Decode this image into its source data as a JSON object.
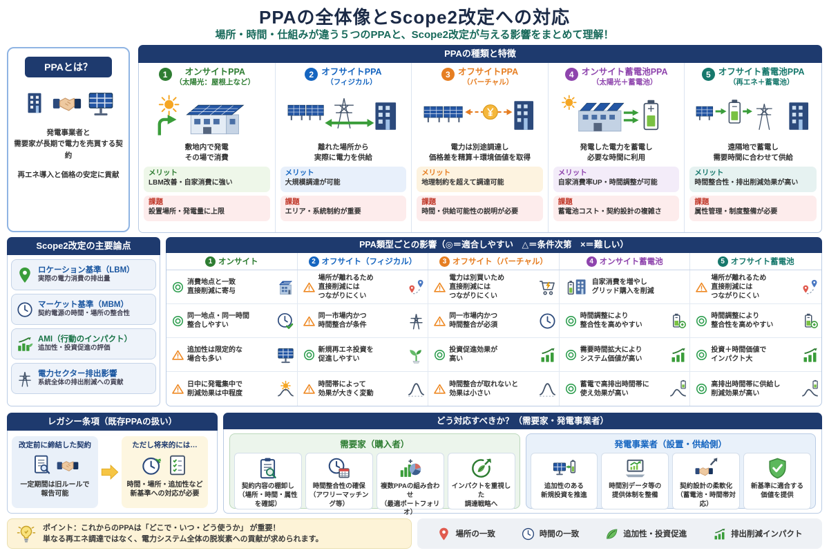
{
  "title": "PPAの全体像とScope2改定への対応",
  "subtitle": "場所・時間・仕組みが違う５つのPPAと、Scope2改定が与える影響をまとめて理解！",
  "intro": {
    "header": "PPAとは？",
    "paragraphs": [
      [
        "発電事業者と",
        "需要家が長期で電力を売買する契約"
      ],
      [
        "再エネ導入と価格の安定に貢献"
      ]
    ]
  },
  "types": {
    "header": "PPAの種類と特徴",
    "merit_label": "メリット",
    "issue_label": "課題",
    "columns": [
      {
        "num": "1",
        "color": "#2e7d32",
        "merit_bg": "#eef7e9",
        "title": "オンサイトPPA",
        "subtitle": "（太陽光：屋根上など）",
        "desc": [
          "敷地内で発電",
          "その場で消費"
        ],
        "merit": "LBM改善・自家消費に強い",
        "issue": "設置場所・発電量に上限",
        "illustration": "onsite"
      },
      {
        "num": "2",
        "color": "#1565c0",
        "merit_bg": "#e8f0fb",
        "title": "オフサイトPPA",
        "subtitle": "（フィジカル）",
        "desc": [
          "離れた場所から",
          "実際に電力を供給"
        ],
        "merit": "大規模調達が可能",
        "issue": "エリア・系統制約が重要",
        "illustration": "offsite_physical"
      },
      {
        "num": "3",
        "color": "#e67e22",
        "merit_bg": "#fdf3e0",
        "title": "オフサイトPPA",
        "subtitle": "（バーチャル）",
        "desc": [
          "電力は別途調達し",
          "価格差を精算＋環境価値を取得"
        ],
        "merit": "地理制約を超えて調達可能",
        "issue": "時間・供給可能性の説明が必要",
        "illustration": "offsite_virtual"
      },
      {
        "num": "4",
        "color": "#8e44ad",
        "merit_bg": "#f3ecf9",
        "title": "オンサイト蓄電池PPA",
        "subtitle": "（太陽光＋蓄電池）",
        "desc": [
          "発電した電力を蓄電し",
          "必要な時間に利用"
        ],
        "merit": "自家消費率UP・時間調整が可能",
        "issue": "蓄電池コスト・契約設計の複雑さ",
        "illustration": "onsite_battery"
      },
      {
        "num": "5",
        "color": "#16786c",
        "merit_bg": "#e6f2f1",
        "title": "オフサイト蓄電池PPA",
        "subtitle": "（再エネ＋蓄電池）",
        "desc": [
          "遠隔地で蓄電し",
          "需要時間に合わせて供給"
        ],
        "merit": "時間整合性・排出削減効果が高い",
        "issue": "属性管理・制度整備が必要",
        "illustration": "offsite_battery"
      }
    ]
  },
  "topics": {
    "header": "Scope2改定の主要論点",
    "items": [
      {
        "icon": "pin-green",
        "title": "ロケーション基準（LBM）",
        "title_color": "#1a56a0",
        "desc": "実際の電力消費の排出量"
      },
      {
        "icon": "clock",
        "title": "マーケット基準（MBM）",
        "title_color": "#1a56a0",
        "desc": "契約電源の時間・場所の整合性"
      },
      {
        "icon": "impact-chart",
        "title": "AMI（行動のインパクト）",
        "title_color": "#177245",
        "desc": "追加性・投資促進の評価"
      },
      {
        "icon": "tower",
        "title": "電力セクター排出影響",
        "title_color": "#1a56a0",
        "desc": "系統全体の排出削減への貢献"
      }
    ]
  },
  "matrix": {
    "header": "PPA類型ごとの影響（◎＝適合しやすい　△＝条件次第　×＝難しい）",
    "column_headers": [
      {
        "num": "1",
        "label": "オンサイト",
        "color": "#2e7d32"
      },
      {
        "num": "2",
        "label": "オフサイト（フィジカル）",
        "color": "#1565c0"
      },
      {
        "num": "3",
        "label": "オフサイト（バーチャル）",
        "color": "#e67e22"
      },
      {
        "num": "4",
        "label": "オンサイト蓄電池",
        "color": "#8e44ad"
      },
      {
        "num": "5",
        "label": "オフサイト蓄電池",
        "color": "#16786c"
      }
    ],
    "rows": [
      {
        "cells": [
          {
            "mark": "◎",
            "lines": [
              "消費地点と一致",
              "直接削減に寄与"
            ],
            "icon": "building-solar"
          },
          {
            "mark": "△",
            "lines": [
              "場所が離れるため",
              "直接削減には",
              "つながりにくい"
            ],
            "icon": "map-pins"
          },
          {
            "mark": "△",
            "lines": [
              "電力は別買いため",
              "直接削減には",
              "つながりにくい"
            ],
            "icon": "cart-bolt"
          },
          {
            "mark": "",
            "lines": [
              "自家消費を増やし",
              "グリッド購入を削減"
            ],
            "icon": "battery-building",
            "icon_left": true
          },
          {
            "mark": "△",
            "lines": [
              "場所が離れるため",
              "直接削減には",
              "つながりにくい"
            ],
            "icon": "map-pins"
          }
        ]
      },
      {
        "cells": [
          {
            "mark": "◎",
            "lines": [
              "同一地点・同一時間",
              "整合しやすい"
            ],
            "icon": "clock-check"
          },
          {
            "mark": "△",
            "lines": [
              "同一市場内かつ",
              "時間整合が条件"
            ],
            "icon": "tower"
          },
          {
            "mark": "△",
            "lines": [
              "同一市場内かつ",
              "時間整合が必須"
            ],
            "icon": "clock"
          },
          {
            "mark": "◎",
            "lines": [
              "時間調整により",
              "整合性を高めやすい"
            ],
            "icon": "battery-plus"
          },
          {
            "mark": "◎",
            "lines": [
              "時間調整により",
              "整合性を高めやすい"
            ],
            "icon": "battery-plus"
          }
        ]
      },
      {
        "cells": [
          {
            "mark": "△",
            "lines": [
              "追加性は限定的な",
              "場合も多い"
            ],
            "icon": "solar-stand"
          },
          {
            "mark": "◎",
            "lines": [
              "新規再エネ投資を",
              "促進しやすい"
            ],
            "icon": "sprout"
          },
          {
            "mark": "◎",
            "lines": [
              "投資促進効果が",
              "高い"
            ],
            "icon": "bars-arrow"
          },
          {
            "mark": "◎",
            "lines": [
              "需要時間拡大により",
              "システム価値が高い"
            ],
            "icon": "bars-arrow"
          },
          {
            "mark": "◎",
            "lines": [
              "投資＋時間価値で",
              "インパクト大"
            ],
            "icon": "bars-arrow"
          }
        ]
      },
      {
        "cells": [
          {
            "mark": "△",
            "lines": [
              "日中に発電集中で",
              "削減効果は中程度"
            ],
            "icon": "sun-curve"
          },
          {
            "mark": "△",
            "lines": [
              "時間帯によって",
              "効果が大きく変動"
            ],
            "icon": "curve"
          },
          {
            "mark": "△",
            "lines": [
              "時間整合が取れないと",
              "効果は小さい"
            ],
            "icon": "curve"
          },
          {
            "mark": "◎",
            "lines": [
              "蓄電で高排出時間帯に",
              "使え効果が高い"
            ],
            "icon": "battery-curve"
          },
          {
            "mark": "◎",
            "lines": [
              "高排出時間帯に供給し",
              "削減効果が高い"
            ],
            "icon": "battery-curve"
          }
        ]
      }
    ]
  },
  "legacy": {
    "header": "レガシー条項（既存PPAの扱い）",
    "before": {
      "title": "改定前に締結した契約",
      "desc": [
        "一定期間は旧ルールで",
        "報告可能"
      ]
    },
    "after": {
      "title": "ただし将来的には…",
      "desc": [
        "時間・場所・追加性など",
        "新基準への対応が必要"
      ]
    }
  },
  "response": {
    "header": "どう対応すべきか？（需要家・発電事業者）",
    "consumer": {
      "title": "需要家（購入者）",
      "cards": [
        {
          "icon": "clipboard-magnifier",
          "lines": [
            "契約内容の棚卸し",
            "（場所・時間・属性を確認）"
          ]
        },
        {
          "icon": "clock-calendar",
          "lines": [
            "時間整合性の確保",
            "（アワリーマッチング等）"
          ]
        },
        {
          "icon": "chart-pie",
          "lines": [
            "複数PPAの組み合わせ",
            "（最適ポートフォリオ）"
          ]
        },
        {
          "icon": "leaf-circle",
          "lines": [
            "インパクトを重視した",
            "調達戦略へ"
          ]
        }
      ]
    },
    "producer": {
      "title": "発電事業者（設置・供給側）",
      "cards": [
        {
          "icon": "solar-battery",
          "lines": [
            "追加性のある",
            "新規投資を推進"
          ]
        },
        {
          "icon": "laptop-chart",
          "lines": [
            "時間別データ等の",
            "提供体制を整備"
          ]
        },
        {
          "icon": "handshake-arrow",
          "lines": [
            "契約設計の柔軟化",
            "（蓄電池・時間帯対応）"
          ]
        },
        {
          "icon": "shield-check",
          "lines": [
            "新基準に適合する",
            "価値を提供"
          ]
        }
      ]
    }
  },
  "point": {
    "lines": [
      "ポイント：これからのPPAは「どこで・いつ・どう使うか」 が重要！",
      "単なる再エネ調達ではなく、電力システム全体の脱炭素への貢献が求められます。"
    ]
  },
  "legend": [
    {
      "icon": "pin-red",
      "label": "場所の一致"
    },
    {
      "icon": "clock",
      "label": "時間の一致"
    },
    {
      "icon": "leaf",
      "label": "追加性・投資促進"
    },
    {
      "icon": "bars-arrow",
      "label": "排出削減インパクト"
    }
  ]
}
